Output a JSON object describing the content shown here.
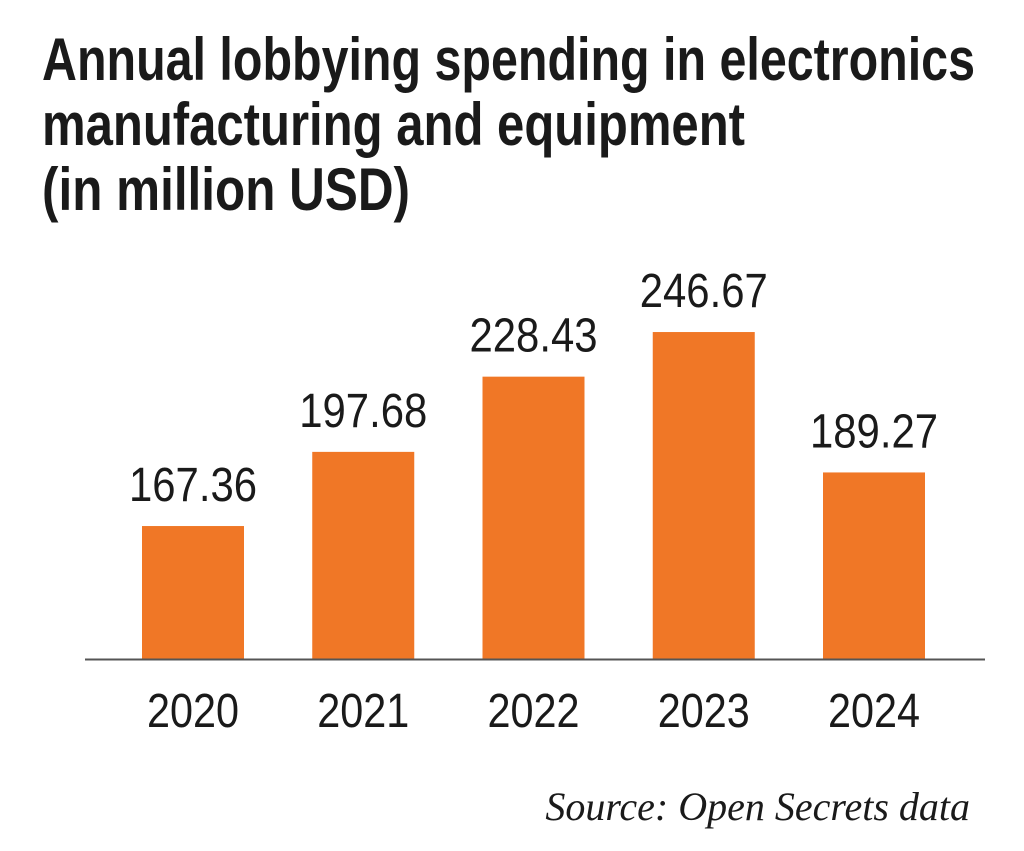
{
  "chart_data": {
    "type": "bar",
    "title_lines": [
      "Annual lobbying spending in electronics",
      "manufacturing and equipment",
      "(in million USD)"
    ],
    "categories": [
      "2020",
      "2021",
      "2022",
      "2023",
      "2024"
    ],
    "values": [
      167.36,
      197.68,
      228.43,
      246.67,
      189.27
    ],
    "value_labels": [
      "167.36",
      "197.68",
      "228.43",
      "246.67",
      "189.27"
    ],
    "xlabel": "",
    "ylabel": "",
    "ylim": [
      113,
      250
    ],
    "grid": false,
    "bar_color": "#F07726",
    "source": "Source: Open Secrets data"
  }
}
